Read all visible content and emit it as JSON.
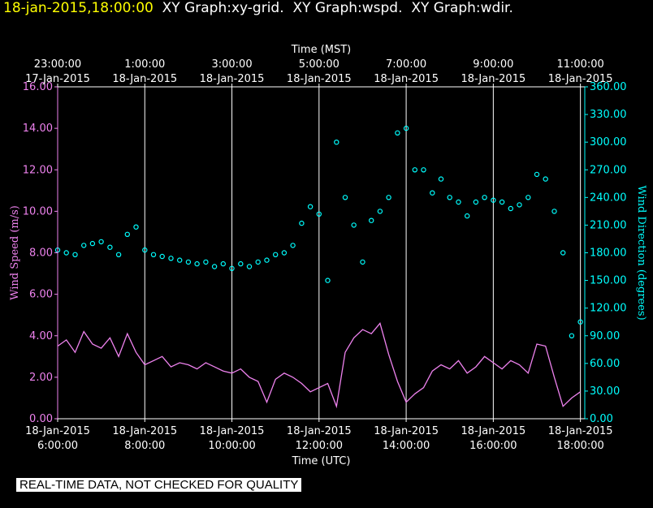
{
  "header": {
    "datetime": "18-jan-2015,18:00:00",
    "graphs": [
      "XY Graph:xy-grid.",
      "XY Graph:wspd.",
      "XY Graph:wdir."
    ]
  },
  "disclaimer": "REAL-TIME DATA, NOT CHECKED FOR QUALITY",
  "colors": {
    "wspd": "#ee82ee",
    "wdir": "#00ffff",
    "axis": "#ffffff",
    "header_date": "#ffff00"
  },
  "chart_data": {
    "type": "line",
    "xlabel_bottom": "Time (UTC)",
    "xlabel_top": "Time (MST)",
    "ylabel_left": "Wind Speed (m/s)",
    "ylabel_right": "Wind Direction (degrees)",
    "xlim_hours": [
      6,
      18.1
    ],
    "ylim_left": [
      0,
      16
    ],
    "ylim_right": [
      0,
      360
    ],
    "grid": "vertical",
    "x_ticks_bottom": [
      {
        "h": 6,
        "line1": "18-Jan-2015",
        "line2": "6:00:00"
      },
      {
        "h": 8,
        "line1": "18-Jan-2015",
        "line2": "8:00:00"
      },
      {
        "h": 10,
        "line1": "18-Jan-2015",
        "line2": "10:00:00"
      },
      {
        "h": 12,
        "line1": "18-Jan-2015",
        "line2": "12:00:00"
      },
      {
        "h": 14,
        "line1": "18-Jan-2015",
        "line2": "14:00:00"
      },
      {
        "h": 16,
        "line1": "18-Jan-2015",
        "line2": "16:00:00"
      },
      {
        "h": 18,
        "line1": "18-Jan-2015",
        "line2": "18:00:00"
      }
    ],
    "x_ticks_top": [
      {
        "h": 6,
        "line1": "23:00:00",
        "line2": "17-Jan-2015"
      },
      {
        "h": 8,
        "line1": "1:00:00",
        "line2": "18-Jan-2015"
      },
      {
        "h": 10,
        "line1": "3:00:00",
        "line2": "18-Jan-2015"
      },
      {
        "h": 12,
        "line1": "5:00:00",
        "line2": "18-Jan-2015"
      },
      {
        "h": 14,
        "line1": "7:00:00",
        "line2": "18-Jan-2015"
      },
      {
        "h": 16,
        "line1": "9:00:00",
        "line2": "18-Jan-2015"
      },
      {
        "h": 18,
        "line1": "11:00:00",
        "line2": "18-Jan-2015"
      }
    ],
    "y_ticks_left": [
      "0.00",
      "2.00",
      "4.00",
      "6.00",
      "8.00",
      "10.00",
      "12.00",
      "14.00",
      "16.00"
    ],
    "y_ticks_right": [
      "0.00",
      "30.00",
      "60.00",
      "90.00",
      "120.00",
      "150.00",
      "180.00",
      "210.00",
      "240.00",
      "270.00",
      "300.00",
      "330.00",
      "360.00"
    ],
    "series": [
      {
        "name": "Wind Speed (m/s)",
        "style": "line",
        "x": [
          6.0,
          6.2,
          6.4,
          6.6,
          6.8,
          7.0,
          7.2,
          7.4,
          7.6,
          7.8,
          8.0,
          8.2,
          8.4,
          8.6,
          8.8,
          9.0,
          9.2,
          9.4,
          9.6,
          9.8,
          10.0,
          10.2,
          10.4,
          10.6,
          10.8,
          11.0,
          11.2,
          11.4,
          11.6,
          11.8,
          12.0,
          12.2,
          12.4,
          12.6,
          12.8,
          13.0,
          13.2,
          13.4,
          13.6,
          13.8,
          14.0,
          14.2,
          14.4,
          14.6,
          14.8,
          15.0,
          15.2,
          15.4,
          15.6,
          15.8,
          16.0,
          16.2,
          16.4,
          16.6,
          16.8,
          17.0,
          17.2,
          17.4,
          17.6,
          17.8,
          18.0
        ],
        "y": [
          3.5,
          3.8,
          3.2,
          4.2,
          3.6,
          3.4,
          3.9,
          3.0,
          4.1,
          3.2,
          2.6,
          2.8,
          3.0,
          2.5,
          2.7,
          2.6,
          2.4,
          2.7,
          2.5,
          2.3,
          2.2,
          2.4,
          2.0,
          1.8,
          0.8,
          1.9,
          2.2,
          2.0,
          1.7,
          1.3,
          1.5,
          1.7,
          0.6,
          3.2,
          3.9,
          4.3,
          4.1,
          4.6,
          3.1,
          1.8,
          0.8,
          1.2,
          1.5,
          2.3,
          2.6,
          2.4,
          2.8,
          2.2,
          2.5,
          3.0,
          2.7,
          2.4,
          2.8,
          2.6,
          2.2,
          3.6,
          3.5,
          2.0,
          0.6,
          1.0,
          1.3
        ]
      },
      {
        "name": "Wind Direction (degrees)",
        "style": "markers",
        "x": [
          6.0,
          6.2,
          6.4,
          6.6,
          6.8,
          7.0,
          7.2,
          7.4,
          7.6,
          7.8,
          8.0,
          8.2,
          8.4,
          8.6,
          8.8,
          9.0,
          9.2,
          9.4,
          9.6,
          9.8,
          10.0,
          10.2,
          10.4,
          10.6,
          10.8,
          11.0,
          11.2,
          11.4,
          11.6,
          11.8,
          12.0,
          12.2,
          12.4,
          12.6,
          12.8,
          13.0,
          13.2,
          13.4,
          13.6,
          13.8,
          14.0,
          14.2,
          14.4,
          14.6,
          14.8,
          15.0,
          15.2,
          15.4,
          15.6,
          15.8,
          16.0,
          16.2,
          16.4,
          16.6,
          16.8,
          17.0,
          17.2,
          17.4,
          17.6,
          17.8,
          18.0
        ],
        "y": [
          183,
          180,
          178,
          188,
          190,
          192,
          186,
          178,
          200,
          208,
          183,
          178,
          176,
          174,
          172,
          170,
          168,
          170,
          165,
          168,
          163,
          168,
          165,
          170,
          172,
          178,
          180,
          188,
          212,
          230,
          222,
          150,
          300,
          240,
          210,
          170,
          215,
          225,
          240,
          310,
          315,
          270,
          270,
          245,
          260,
          240,
          235,
          220,
          235,
          240,
          237,
          235,
          228,
          232,
          240,
          265,
          260,
          225,
          180,
          90,
          105
        ]
      }
    ]
  }
}
